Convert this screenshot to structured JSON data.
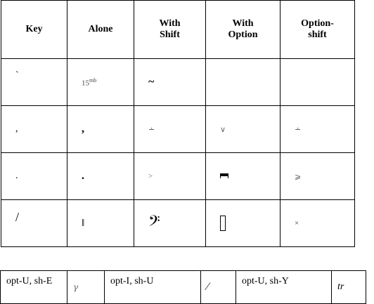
{
  "headers": [
    "Key",
    "Alone",
    "With Shift",
    "With Option",
    "Option-shift"
  ],
  "rows": [
    {
      "key": "`",
      "alone_main": "15",
      "alone_sup": "mb",
      "shift": "~",
      "option": "",
      "option_shift": ""
    },
    {
      "key": ",",
      "alone_main": ",",
      "alone_sup": "",
      "shift": "∸",
      "option": "∨",
      "option_shift": "∸"
    },
    {
      "key": ".",
      "alone_main": ".",
      "alone_sup": "",
      "shift": ">",
      "option": "",
      "option_shift": "⩾"
    },
    {
      "key": "/",
      "alone_main": "‖",
      "alone_sup": "",
      "shift": "𝄢",
      "option": "",
      "option_shift": "×"
    }
  ],
  "footer": [
    {
      "label": "opt-U, sh-E",
      "symbol": "𝛾"
    },
    {
      "label": "opt-I, sh-U",
      "symbol": "∕"
    },
    {
      "label": "opt-U, sh-Y",
      "symbol": "tr"
    }
  ],
  "icons": {
    "option_row3": "fermata-rect-icon",
    "option_row4": "empty-box-icon"
  }
}
